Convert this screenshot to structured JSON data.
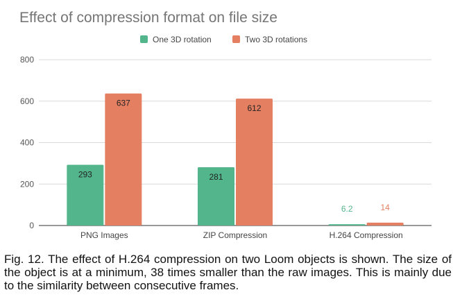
{
  "chart_data": {
    "type": "bar",
    "title": "Effect of compression format on file size",
    "categories": [
      "PNG Images",
      "ZIP Compression",
      "H.264 Compression"
    ],
    "series": [
      {
        "name": "One 3D rotation",
        "values": [
          293,
          281,
          6.2
        ],
        "labels": [
          "293",
          "281",
          "6.2"
        ],
        "color": "#52b58b"
      },
      {
        "name": "Two 3D rotations",
        "values": [
          637,
          612,
          14
        ],
        "labels": [
          "637",
          "612",
          "14"
        ],
        "color": "#e57f62"
      }
    ],
    "y_ticks": [
      "0",
      "200",
      "400",
      "600",
      "800"
    ],
    "ylim": [
      0,
      800
    ],
    "grid": true,
    "legend_position": "top"
  },
  "caption": "Fig. 12. The effect of H.264 compression on two Loom objects is shown. The size of the object is at a minimum, 38 times smaller than the raw images. This is mainly due to the similarity between consecutive frames."
}
